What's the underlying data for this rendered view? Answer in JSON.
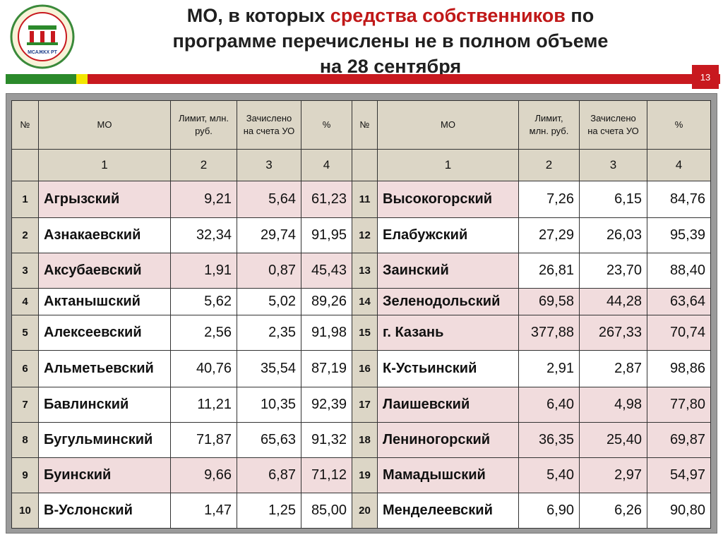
{
  "logo": {
    "text": "МСАЖКХ РТ"
  },
  "title": {
    "line1_a": "МО, в которых ",
    "line1_accent": "средства собственников",
    "line1_b": " по",
    "line2": "программе перечислены не в полном объеме",
    "line3": "на 28 сентября"
  },
  "page_number": "13",
  "colors": {
    "accent": "#c8191f",
    "green": "#2b8a2b",
    "yellow": "#f2e600",
    "header_bg": "#dcd6c6",
    "highlight": "#f1dcdd"
  },
  "table": {
    "headers": [
      "№",
      "МО",
      "Лимит, млн. руб.",
      "Зачислено на счета УО",
      "%",
      "№",
      "МО",
      "Лимит, млн. руб.",
      "Зачислено на счета УО",
      "%"
    ],
    "subheaders": [
      "",
      "1",
      "2",
      "3",
      "4",
      "",
      "1",
      "2",
      "3",
      "4"
    ],
    "rows": [
      {
        "left": [
          "1",
          "Агрызский",
          "9,21",
          "5,64",
          "61,23"
        ],
        "right": [
          "11",
          "Высокогорский",
          "7,26",
          "6,15",
          "84,76"
        ],
        "lhl": true,
        "rhl": false
      },
      {
        "left": [
          "2",
          "Азнакаевский",
          "32,34",
          "29,74",
          "91,95"
        ],
        "right": [
          "12",
          "Елабужский",
          "27,29",
          "26,03",
          "95,39"
        ],
        "lhl": false,
        "rhl": false
      },
      {
        "left": [
          "3",
          "Аксубаевский",
          "1,91",
          "0,87",
          "45,43"
        ],
        "right": [
          "13",
          "Заинский",
          "26,81",
          "23,70",
          "88,40"
        ],
        "lhl": true,
        "rhl": false
      },
      {
        "left": [
          "4",
          "Актанышский",
          "5,62",
          "5,02",
          "89,26"
        ],
        "right": [
          "14",
          "Зеленодольский",
          "69,58",
          "44,28",
          "63,64"
        ],
        "lhl": false,
        "rhl": true
      },
      {
        "left": [
          "5",
          "Алексеевский",
          "2,56",
          "2,35",
          "91,98"
        ],
        "right": [
          "15",
          "г. Казань",
          "377,88",
          "267,33",
          "70,74"
        ],
        "lhl": false,
        "rhl": true
      },
      {
        "left": [
          "6",
          "Альметьевский",
          "40,76",
          "35,54",
          "87,19"
        ],
        "right": [
          "16",
          "К-Устьинский",
          "2,91",
          "2,87",
          "98,86"
        ],
        "lhl": false,
        "rhl": false
      },
      {
        "left": [
          "7",
          "Бавлинский",
          "11,21",
          "10,35",
          "92,39"
        ],
        "right": [
          "17",
          "Лаишевский",
          "6,40",
          "4,98",
          "77,80"
        ],
        "lhl": false,
        "rhl": true
      },
      {
        "left": [
          "8",
          "Бугульминский",
          "71,87",
          "65,63",
          "91,32"
        ],
        "right": [
          "18",
          "Лениногорский",
          "36,35",
          "25,40",
          "69,87"
        ],
        "lhl": false,
        "rhl": true
      },
      {
        "left": [
          "9",
          "Буинский",
          "9,66",
          "6,87",
          "71,12"
        ],
        "right": [
          "19",
          "Мамадышский",
          "5,40",
          "2,97",
          "54,97"
        ],
        "lhl": true,
        "rhl": true
      },
      {
        "left": [
          "10",
          "В-Услонский",
          "1,47",
          "1,25",
          "85,00"
        ],
        "right": [
          "20",
          "Менделеевский",
          "6,90",
          "6,26",
          "90,80"
        ],
        "lhl": false,
        "rhl": false
      }
    ]
  }
}
